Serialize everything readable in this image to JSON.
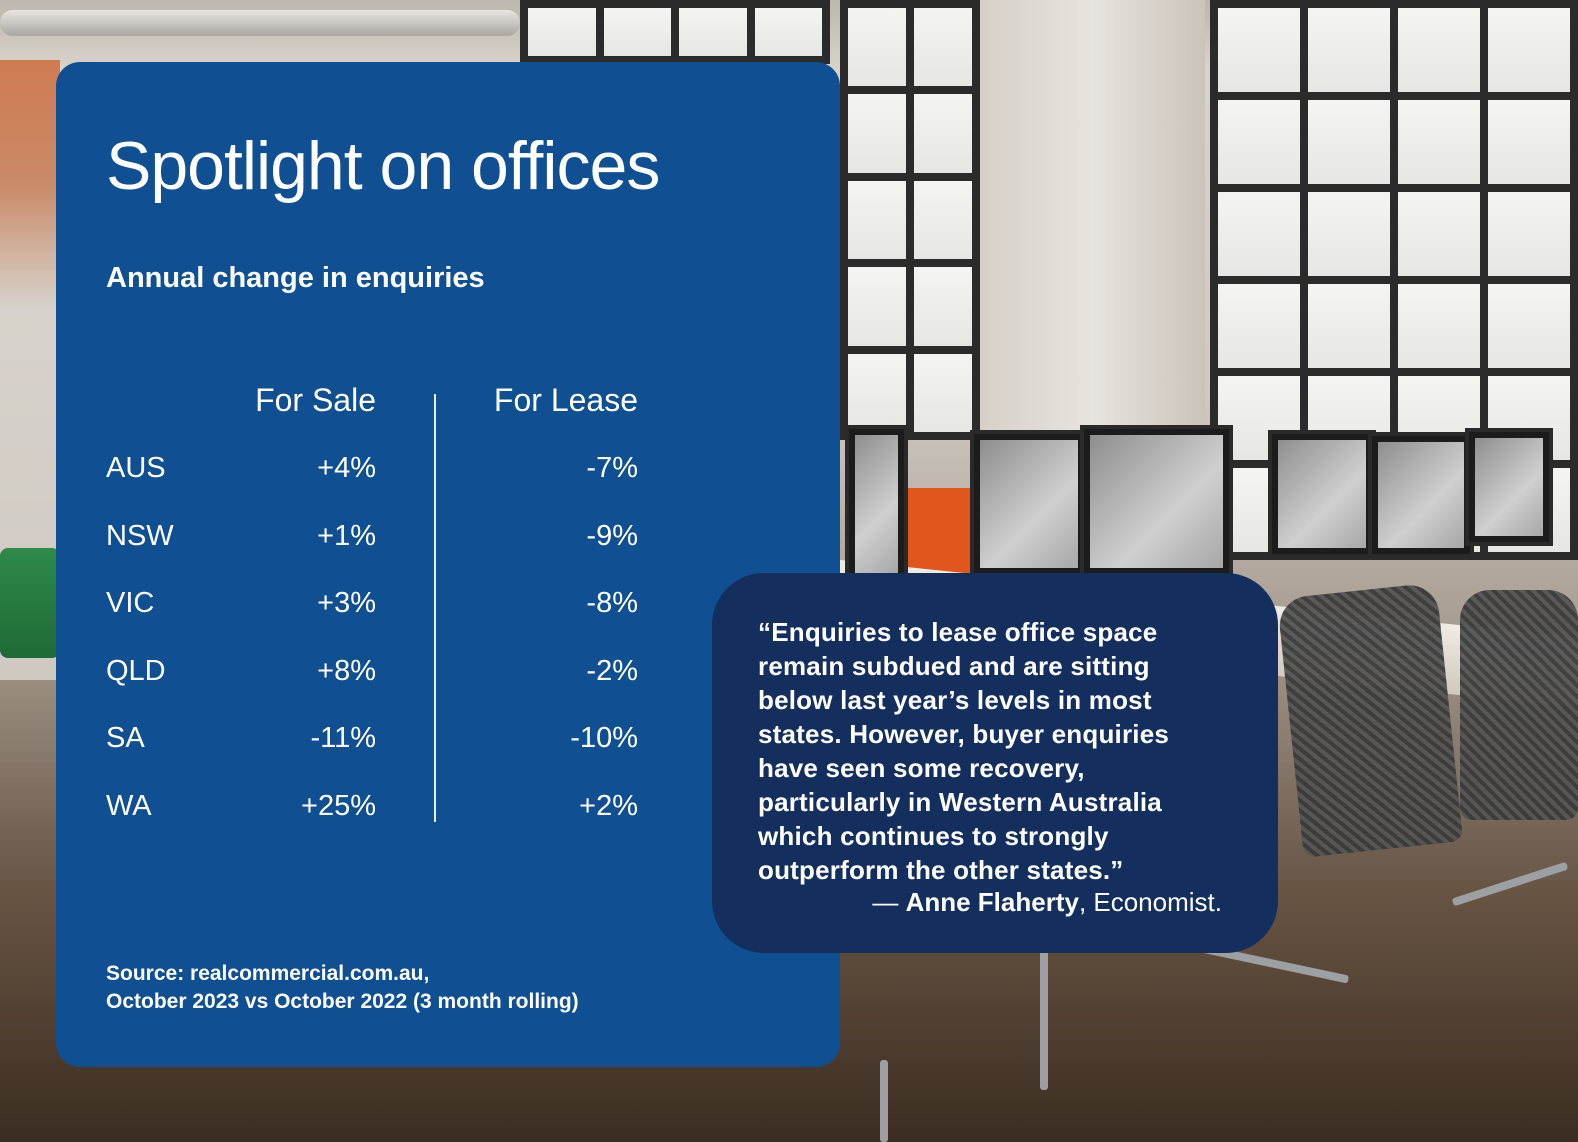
{
  "panel": {
    "title": "Spotlight on offices",
    "subtitle": "Annual change in enquiries",
    "columns": {
      "sale": "For Sale",
      "lease": "For Lease"
    },
    "rows": [
      {
        "state": "AUS",
        "sale": "+4%",
        "lease": "-7%"
      },
      {
        "state": "NSW",
        "sale": "+1%",
        "lease": "-9%"
      },
      {
        "state": "VIC",
        "sale": "+3%",
        "lease": "-8%"
      },
      {
        "state": "QLD",
        "sale": "+8%",
        "lease": "-2%"
      },
      {
        "state": "SA",
        "sale": "-11%",
        "lease": "-10%"
      },
      {
        "state": "WA",
        "sale": "+25%",
        "lease": "+2%"
      }
    ],
    "source_line1": "Source: realcommercial.com.au,",
    "source_line2": "October 2023 vs October 2022 (3 month rolling)"
  },
  "quote": {
    "text": "“Enquiries to lease office space remain subdued and are sitting below last year’s levels in most states. However, buyer enquiries have seen some recovery, particularly in Western Australia which continues to strongly outperform the other states.”",
    "dash": "— ",
    "author": "Anne Flaherty",
    "role": ", Economist."
  },
  "colors": {
    "panel": "#0f4f92",
    "quote_bubble": "#142f5e",
    "text": "#ffffff"
  }
}
